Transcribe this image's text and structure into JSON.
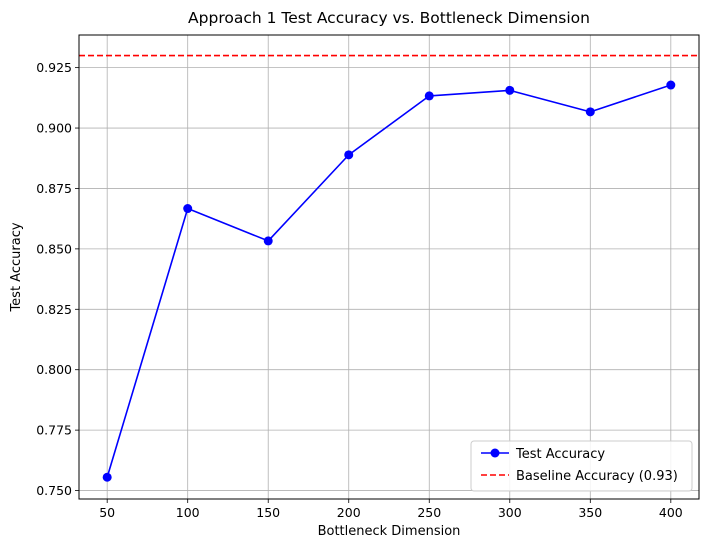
{
  "chart_data": {
    "type": "line",
    "title": "Approach 1 Test Accuracy vs. Bottleneck Dimension",
    "xlabel": "Bottleneck Dimension",
    "ylabel": "Test Accuracy",
    "x": [
      50,
      100,
      150,
      200,
      250,
      300,
      350,
      400
    ],
    "x_ticks": [
      "50",
      "100",
      "150",
      "200",
      "250",
      "300",
      "350",
      "400"
    ],
    "y_ticks": [
      "0.750",
      "0.775",
      "0.800",
      "0.825",
      "0.850",
      "0.875",
      "0.900",
      "0.925"
    ],
    "xlim": [
      32.5,
      417.5
    ],
    "ylim": [
      0.7465,
      0.9385
    ],
    "grid": true,
    "legend_position": "lower right",
    "series": [
      {
        "name": "Test Accuracy",
        "values": [
          0.7555,
          0.8667,
          0.8533,
          0.8889,
          0.9133,
          0.9156,
          0.9067,
          0.9178
        ],
        "color": "#0000ff",
        "marker": "circle",
        "linestyle": "solid"
      }
    ],
    "baseline": {
      "name": "Baseline Accuracy (0.93)",
      "value": 0.93,
      "color": "#ff0000",
      "linestyle": "dashed"
    }
  }
}
